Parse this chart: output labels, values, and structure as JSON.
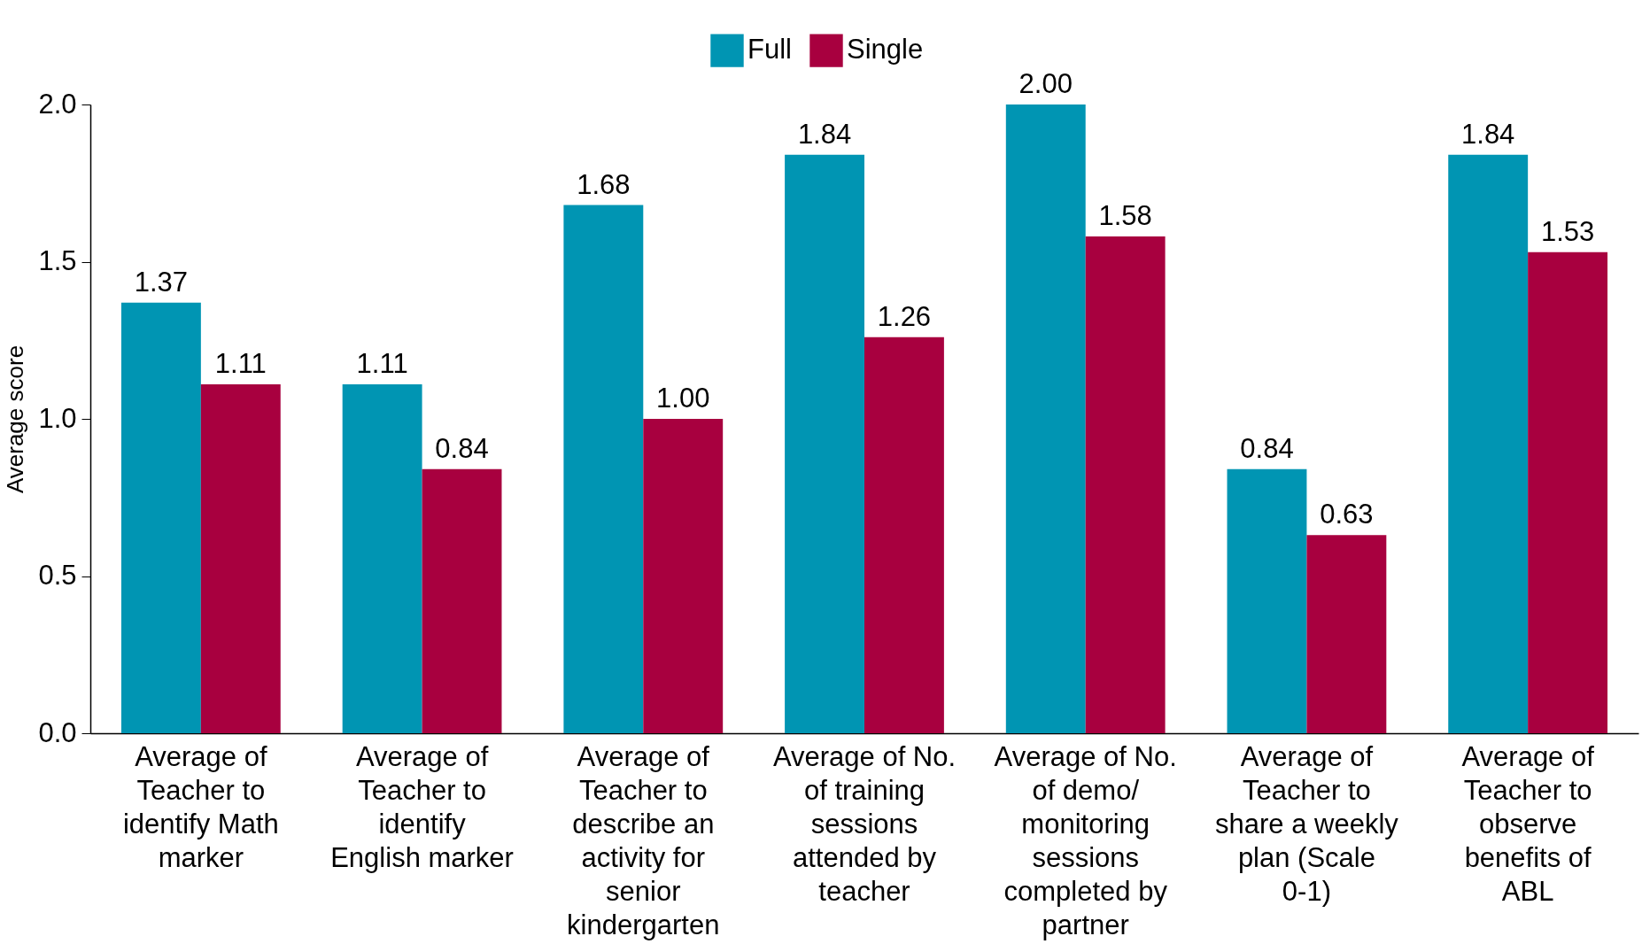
{
  "chart_data": {
    "type": "bar",
    "ylabel": "Average score",
    "categories": [
      "Average of Teacher to identify Math marker",
      "Average of Teacher to identify English marker",
      "Average of Teacher to describe an activity for senior kindergarten",
      "Average of No. of training sessions attended by teacher",
      "Average of No. of demo/ monitoring sessions completed by partner",
      "Average of Teacher to share a weekly plan (Scale 0-1)",
      "Average of Teacher to observe benefits of ABL"
    ],
    "series": [
      {
        "name": "Full",
        "color": "#0095b3",
        "values": [
          1.37,
          1.11,
          1.68,
          1.84,
          2.0,
          0.84,
          1.84
        ],
        "value_labels": [
          "1.37",
          "1.11",
          "1.68",
          "1.84",
          "2.00",
          "0.84",
          "1.84"
        ]
      },
      {
        "name": "Single",
        "color": "#a8003f",
        "values": [
          1.11,
          0.84,
          1.0,
          1.26,
          1.58,
          0.63,
          1.53
        ],
        "value_labels": [
          "1.11",
          "0.84",
          "1.00",
          "1.26",
          "1.58",
          "0.63",
          "1.53"
        ]
      }
    ],
    "ylim": [
      0,
      2
    ],
    "yticks": [
      {
        "value": 0,
        "label": "0.0"
      },
      {
        "value": 0.5,
        "label": "0.5"
      },
      {
        "value": 1,
        "label": "1.0"
      },
      {
        "value": 1.5,
        "label": "1.5"
      },
      {
        "value": 2,
        "label": "2.0"
      }
    ],
    "grid": false,
    "legend": "top"
  }
}
